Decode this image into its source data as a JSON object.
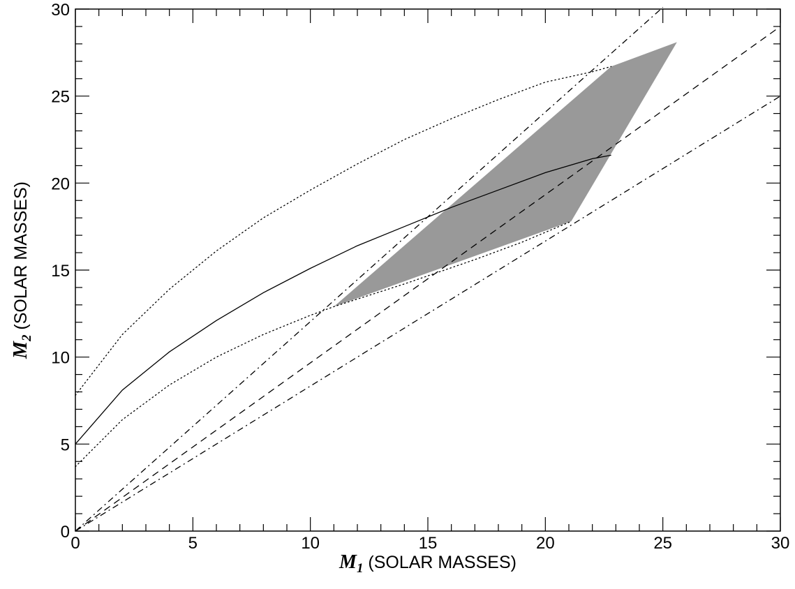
{
  "chart_data": {
    "type": "line",
    "xlabel": {
      "symbol": "M",
      "subscript": "1",
      "text": " (SOLAR MASSES)"
    },
    "ylabel": {
      "symbol": "M",
      "subscript": "2",
      "text": " (SOLAR MASSES)"
    },
    "xlim": [
      0,
      30
    ],
    "ylim": [
      0,
      30
    ],
    "xticks": [
      0,
      5,
      10,
      15,
      20,
      25,
      30
    ],
    "yticks": [
      0,
      5,
      10,
      15,
      20,
      25,
      30
    ],
    "grid": false,
    "colors": {
      "line": "#000000",
      "shaded_region": "#999999",
      "background": "#ffffff"
    },
    "shaded_region": {
      "x": [
        11.0,
        22.8,
        25.6,
        21.1
      ],
      "y": [
        12.9,
        26.7,
        28.1,
        17.8
      ]
    },
    "series": [
      {
        "style": "solid",
        "x": [
          0,
          2,
          4,
          6,
          8,
          10,
          12,
          14,
          16,
          18,
          20,
          22,
          22.8
        ],
        "y": [
          5.0,
          8.1,
          10.3,
          12.1,
          13.7,
          15.1,
          16.4,
          17.5,
          18.6,
          19.6,
          20.6,
          21.4,
          21.6
        ]
      },
      {
        "style": "dotted",
        "x": [
          0,
          2,
          4,
          6,
          8,
          10,
          12,
          14,
          16,
          18,
          20,
          22,
          22.8
        ],
        "y": [
          7.8,
          11.3,
          13.9,
          16.1,
          18.0,
          19.6,
          21.1,
          22.5,
          23.7,
          24.8,
          25.8,
          26.4,
          26.7
        ]
      },
      {
        "style": "dotted",
        "x": [
          0,
          2,
          4,
          6,
          8,
          10,
          11,
          14,
          17,
          19,
          21.1
        ],
        "y": [
          3.7,
          6.4,
          8.4,
          10.0,
          11.3,
          12.4,
          12.9,
          14.2,
          15.6,
          16.6,
          17.8
        ]
      },
      {
        "style": "dashed",
        "x": [
          0,
          30
        ],
        "y": [
          0,
          29.0
        ]
      },
      {
        "style": "dashdot",
        "x": [
          0,
          25
        ],
        "y": [
          0,
          30.1
        ]
      },
      {
        "style": "dashdot",
        "x": [
          0,
          30
        ],
        "y": [
          0,
          25.0
        ]
      }
    ]
  }
}
